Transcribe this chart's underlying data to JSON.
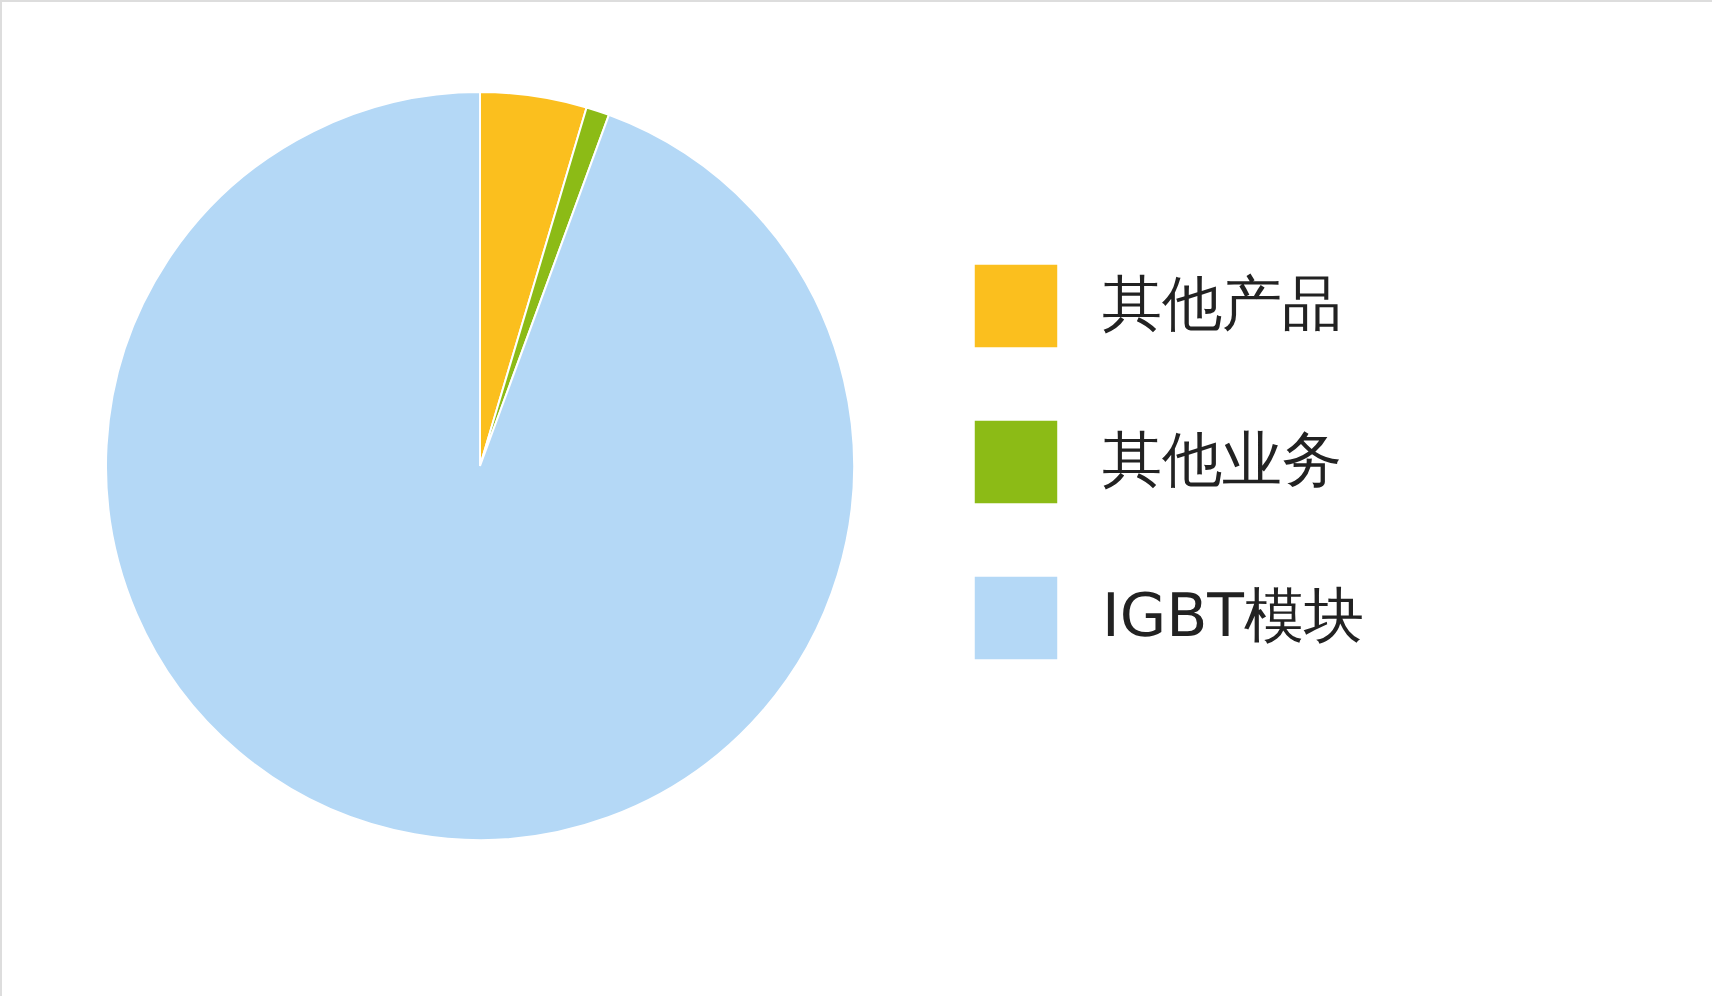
{
  "chart_data": {
    "type": "pie",
    "categories": [
      "其他产品",
      "其他业务",
      "IGBT模块"
    ],
    "values": [
      4.6,
      1.0,
      94.4
    ],
    "colors": [
      "#fbbf1e",
      "#8cbb16",
      "#b4d8f6"
    ],
    "legend": "right"
  }
}
